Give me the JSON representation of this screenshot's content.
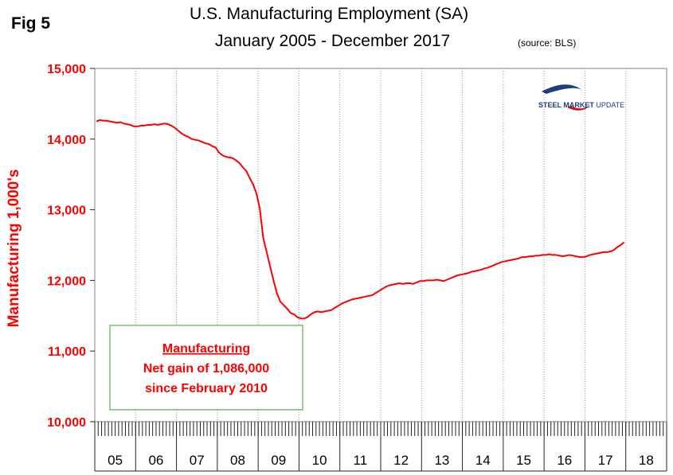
{
  "fig_label": "Fig 5",
  "title_line1": "U.S. Manufacturing Employment (SA)",
  "title_line2": "January 2005 - December 2017",
  "source_note": "(source: BLS)",
  "logo": {
    "bold": "STEEL MARKET",
    "light": " UPDATE"
  },
  "annotation": {
    "title": "Manufacturing",
    "line1": "Net gain of 1,086,000",
    "line2": "since February 2010",
    "border_color": "#2e9e2e"
  },
  "chart_data": {
    "type": "line",
    "title": "U.S. Manufacturing Employment (SA) January 2005 - December 2017",
    "ylabel": "Manufacturing  1,000's",
    "xlabel": "",
    "ylim": [
      10000,
      15000
    ],
    "yticks": [
      10000,
      11000,
      12000,
      13000,
      14000,
      15000
    ],
    "ytick_labels": [
      "10,000",
      "11,000",
      "12,000",
      "13,000",
      "14,000",
      "15,000"
    ],
    "year_labels": [
      "05",
      "06",
      "07",
      "08",
      "09",
      "10",
      "11",
      "12",
      "13",
      "14",
      "15",
      "16",
      "17",
      "18"
    ],
    "x_start": "2005-01",
    "x_end": "2017-12",
    "grid": {
      "vertical": "dotted",
      "horizontal": false
    },
    "line_color": "#ff0000",
    "series": [
      {
        "values": [
          14250,
          14270,
          14260,
          14260,
          14250,
          14240,
          14230,
          14240,
          14220,
          14210,
          14200,
          14180,
          14180,
          14190,
          14190,
          14200,
          14200,
          14210,
          14200,
          14210,
          14220,
          14210,
          14190,
          14160,
          14120,
          14080,
          14050,
          14030,
          14000,
          13990,
          13980,
          13960,
          13940,
          13930,
          13900,
          13880,
          13810,
          13770,
          13750,
          13740,
          13730,
          13700,
          13660,
          13600,
          13550,
          13450,
          13360,
          13230,
          13010,
          12600,
          12400,
          12200,
          12000,
          11820,
          11700,
          11650,
          11600,
          11540,
          11520,
          11480,
          11460,
          11460,
          11480,
          11520,
          11550,
          11560,
          11550,
          11560,
          11570,
          11580,
          11610,
          11640,
          11670,
          11690,
          11710,
          11730,
          11740,
          11750,
          11760,
          11770,
          11780,
          11790,
          11820,
          11850,
          11880,
          11910,
          11930,
          11940,
          11950,
          11960,
          11950,
          11960,
          11960,
          11950,
          11970,
          11990,
          11990,
          12000,
          12000,
          12000,
          12010,
          12000,
          11990,
          12010,
          12030,
          12050,
          12070,
          12080,
          12090,
          12100,
          12120,
          12130,
          12140,
          12150,
          12170,
          12180,
          12200,
          12220,
          12240,
          12260,
          12270,
          12280,
          12290,
          12300,
          12310,
          12330,
          12330,
          12340,
          12340,
          12350,
          12350,
          12360,
          12360,
          12370,
          12360,
          12360,
          12350,
          12340,
          12350,
          12360,
          12350,
          12340,
          12330,
          12330,
          12340,
          12360,
          12370,
          12380,
          12390,
          12400,
          12400,
          12410,
          12430,
          12470,
          12500,
          12540
        ]
      }
    ]
  }
}
